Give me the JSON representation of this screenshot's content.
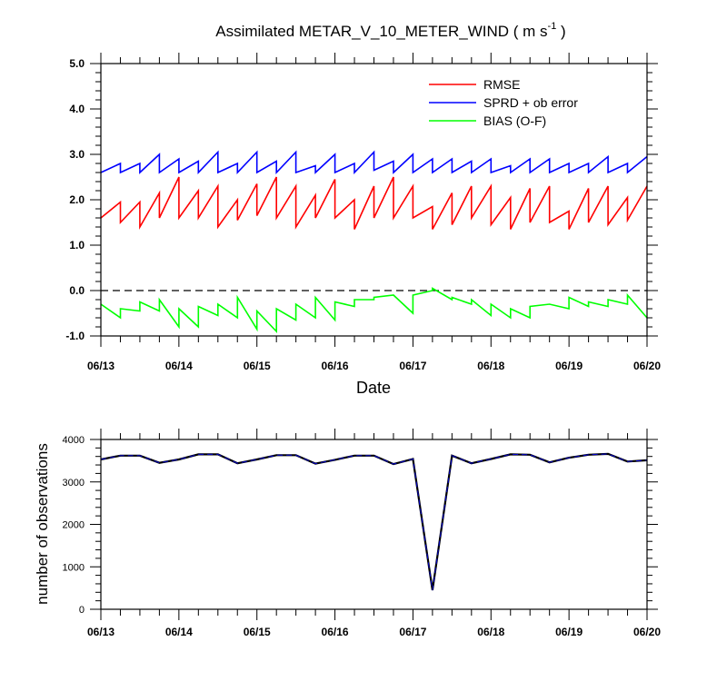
{
  "title": "Assimilated METAR_V_10_METER_WIND ( m s",
  "title_unit_exp": "-1",
  "title_close": " )",
  "xlabel": "Date",
  "colors": {
    "rmse": "#ff0000",
    "sprd": "#0000ff",
    "bias": "#00ff00",
    "obs": "#000000",
    "obs_overlay": "#0000cc",
    "zero_line": "#000000"
  },
  "chart_data": [
    {
      "type": "line",
      "x_ticks": [
        "06/13",
        "06/14",
        "06/15",
        "06/16",
        "06/17",
        "06/18",
        "06/19",
        "06/20"
      ],
      "xlim": [
        0,
        7
      ],
      "ylim": [
        -1.0,
        5.0
      ],
      "y_ticks": [
        "-1.0",
        "0.0",
        "1.0",
        "2.0",
        "3.0",
        "4.0",
        "5.0"
      ],
      "zero_line": "dashed",
      "legend_position": "top-right",
      "series": [
        {
          "name": "RMSE",
          "color_key": "rmse",
          "x": [
            0,
            0.25,
            0.25,
            0.5,
            0.5,
            0.75,
            0.75,
            1,
            1,
            1.25,
            1.25,
            1.5,
            1.5,
            1.75,
            1.75,
            2,
            2,
            2.25,
            2.25,
            2.5,
            2.5,
            2.75,
            2.75,
            3,
            3,
            3.25,
            3.25,
            3.5,
            3.5,
            3.75,
            3.75,
            4,
            4,
            4.25,
            4.25,
            4.5,
            4.5,
            4.75,
            4.75,
            5,
            5,
            5.25,
            5.25,
            5.5,
            5.5,
            5.75,
            5.75,
            6,
            6,
            6.25,
            6.25,
            6.5,
            6.5,
            6.75,
            6.75,
            7
          ],
          "values": [
            1.6,
            1.95,
            1.5,
            1.95,
            1.4,
            2.15,
            1.6,
            2.5,
            1.6,
            2.2,
            1.6,
            2.3,
            1.4,
            2.0,
            1.55,
            2.35,
            1.65,
            2.5,
            1.6,
            2.3,
            1.4,
            2.1,
            1.6,
            2.45,
            1.6,
            2.0,
            1.35,
            2.3,
            1.6,
            2.5,
            1.6,
            2.3,
            1.6,
            1.85,
            1.35,
            2.15,
            1.45,
            2.3,
            1.6,
            2.3,
            1.45,
            2.05,
            1.35,
            2.25,
            1.5,
            2.3,
            1.5,
            1.75,
            1.35,
            2.25,
            1.5,
            2.3,
            1.45,
            2.05,
            1.55,
            2.3
          ]
        },
        {
          "name": "SPRD + ob error",
          "color_key": "sprd",
          "x": [
            0,
            0.25,
            0.25,
            0.5,
            0.5,
            0.75,
            0.75,
            1,
            1,
            1.25,
            1.25,
            1.5,
            1.5,
            1.75,
            1.75,
            2,
            2,
            2.25,
            2.25,
            2.5,
            2.5,
            2.75,
            2.75,
            3,
            3,
            3.25,
            3.25,
            3.5,
            3.5,
            3.75,
            3.75,
            4,
            4,
            4.25,
            4.25,
            4.5,
            4.5,
            4.75,
            4.75,
            5,
            5,
            5.25,
            5.25,
            5.5,
            5.5,
            5.75,
            5.75,
            6,
            6,
            6.25,
            6.25,
            6.5,
            6.5,
            6.75,
            6.75,
            7
          ],
          "values": [
            2.6,
            2.8,
            2.6,
            2.8,
            2.6,
            3.0,
            2.6,
            2.9,
            2.6,
            2.85,
            2.6,
            3.05,
            2.6,
            2.8,
            2.6,
            3.05,
            2.6,
            2.85,
            2.6,
            3.05,
            2.6,
            2.75,
            2.6,
            3.0,
            2.6,
            2.8,
            2.6,
            3.05,
            2.65,
            2.85,
            2.6,
            3.0,
            2.6,
            2.9,
            2.6,
            2.9,
            2.6,
            2.85,
            2.6,
            2.9,
            2.6,
            2.75,
            2.6,
            2.9,
            2.6,
            2.9,
            2.6,
            2.8,
            2.6,
            2.8,
            2.6,
            2.95,
            2.6,
            2.8,
            2.6,
            2.95
          ]
        },
        {
          "name": "BIAS (O-F)",
          "color_key": "bias",
          "x": [
            0,
            0.25,
            0.25,
            0.5,
            0.5,
            0.75,
            0.75,
            1,
            1,
            1.25,
            1.25,
            1.5,
            1.5,
            1.75,
            1.75,
            2,
            2,
            2.25,
            2.25,
            2.5,
            2.5,
            2.75,
            2.75,
            3,
            3,
            3.25,
            3.25,
            3.5,
            3.5,
            3.75,
            3.75,
            4,
            4,
            4.25,
            4.25,
            4.5,
            4.5,
            4.75,
            4.75,
            5,
            5,
            5.25,
            5.25,
            5.5,
            5.5,
            5.75,
            5.75,
            6,
            6,
            6.25,
            6.25,
            6.5,
            6.5,
            6.75,
            6.75,
            7
          ],
          "values": [
            -0.3,
            -0.6,
            -0.4,
            -0.45,
            -0.25,
            -0.45,
            -0.2,
            -0.8,
            -0.4,
            -0.8,
            -0.35,
            -0.55,
            -0.3,
            -0.6,
            -0.15,
            -0.85,
            -0.45,
            -0.9,
            -0.4,
            -0.65,
            -0.3,
            -0.6,
            -0.15,
            -0.65,
            -0.25,
            -0.35,
            -0.2,
            -0.2,
            -0.15,
            -0.1,
            -0.1,
            -0.5,
            -0.1,
            0.0,
            0.05,
            -0.2,
            -0.15,
            -0.3,
            -0.2,
            -0.55,
            -0.3,
            -0.6,
            -0.4,
            -0.6,
            -0.35,
            -0.3,
            -0.3,
            -0.4,
            -0.15,
            -0.35,
            -0.25,
            -0.35,
            -0.2,
            -0.3,
            -0.1,
            -0.6
          ]
        }
      ]
    },
    {
      "type": "line",
      "ylabel": "number of observations",
      "x_ticks": [
        "06/13",
        "06/14",
        "06/15",
        "06/16",
        "06/17",
        "06/18",
        "06/19",
        "06/20"
      ],
      "xlim": [
        0,
        7
      ],
      "ylim": [
        0,
        4000
      ],
      "y_ticks": [
        "0",
        "1000",
        "2000",
        "3000",
        "4000"
      ],
      "series": [
        {
          "color_key": "obs",
          "x": [
            0,
            0.25,
            0.5,
            0.75,
            1,
            1.25,
            1.5,
            1.75,
            2,
            2.25,
            2.5,
            2.75,
            3,
            3.25,
            3.5,
            3.75,
            4,
            4.25,
            4.5,
            4.75,
            5,
            5.25,
            5.5,
            5.75,
            6,
            6.25,
            6.5,
            6.75,
            7
          ],
          "values": [
            3530,
            3620,
            3620,
            3450,
            3530,
            3650,
            3650,
            3440,
            3530,
            3630,
            3630,
            3430,
            3520,
            3620,
            3620,
            3420,
            3540,
            450,
            3620,
            3440,
            3540,
            3650,
            3640,
            3460,
            3570,
            3640,
            3660,
            3480,
            3510
          ]
        }
      ]
    }
  ]
}
